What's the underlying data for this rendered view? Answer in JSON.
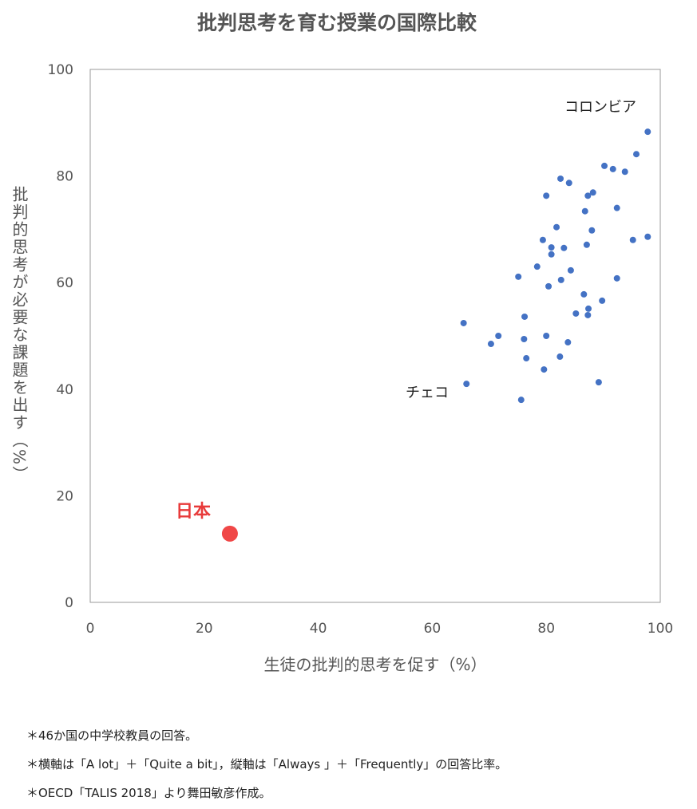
{
  "chart_data": {
    "type": "scatter",
    "title": "批判思考を育む授業の国際比較",
    "x_label": "生徒の批判的思考を促す（%）",
    "y_label": "批判的思考が必要な課題を出す（%）",
    "xlim": [
      0,
      100
    ],
    "xticks": [
      0,
      20,
      40,
      60,
      80,
      100
    ],
    "ylim": [
      0,
      100
    ],
    "yticks": [
      0,
      20,
      40,
      60,
      80,
      100
    ],
    "grid": false,
    "series": [
      {
        "color": "#4472c4",
        "x": [
          97.8,
          95.8,
          90.2,
          91.7,
          93.8,
          82.5,
          84.0,
          88.2,
          87.3,
          80.0,
          92.4,
          86.8,
          81.8,
          88.0,
          97.8,
          95.2,
          79.4,
          87.1,
          80.9,
          83.1,
          80.9,
          78.4,
          84.3,
          82.6,
          92.4,
          75.1,
          80.4,
          86.6,
          89.8,
          87.4,
          87.3,
          85.2,
          76.2,
          65.5,
          71.6,
          80.0,
          76.1,
          70.3,
          83.8,
          76.5,
          82.4,
          79.6,
          89.2,
          66.0,
          75.6
        ],
        "values": [
          88.3,
          84.1,
          81.9,
          81.3,
          80.8,
          79.5,
          78.7,
          76.9,
          76.3,
          76.3,
          74.0,
          73.4,
          70.4,
          69.8,
          68.6,
          68.0,
          68.0,
          67.1,
          66.6,
          66.5,
          65.3,
          63.0,
          62.3,
          60.5,
          60.8,
          61.1,
          59.3,
          57.8,
          56.6,
          55.1,
          53.9,
          54.2,
          53.6,
          52.4,
          50.0,
          50.0,
          49.4,
          48.5,
          48.8,
          45.8,
          46.1,
          43.7,
          41.3,
          41.0,
          38.0
        ]
      },
      {
        "color": "#f04747",
        "x": [
          24.5
        ],
        "values": [
          12.9
        ]
      }
    ],
    "annotations": [
      "コロンビア",
      "チェコ",
      "日本"
    ]
  },
  "notes": [
    "＊46か国の中学校教員の回答。",
    "＊横軸は「A lot」＋「Quite a bit」，縦軸は「Always 」＋「Frequently」の回答比率。",
    "＊OECD「TALIS 2018」より舞田敏彦作成。"
  ]
}
